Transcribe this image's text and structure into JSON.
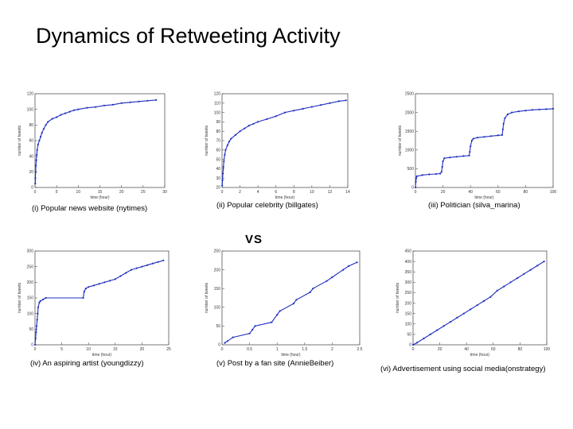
{
  "slide": {
    "title": "Dynamics of Retweeting Activity",
    "vs": "VS"
  },
  "chart_data": [
    {
      "type": "scatter",
      "caption": "(i) Popular news website (nytimes)",
      "xlabel": "time (hour)",
      "ylabel": "number of tweets",
      "xlim": [
        0,
        30
      ],
      "ylim": [
        0,
        120
      ],
      "xticks": [
        0,
        5,
        10,
        15,
        20,
        25,
        30
      ],
      "yticks": [
        0,
        20,
        40,
        60,
        80,
        100,
        120
      ],
      "color": "#1f2fbf",
      "points": [
        [
          0.05,
          5
        ],
        [
          0.1,
          12
        ],
        [
          0.15,
          20
        ],
        [
          0.2,
          28
        ],
        [
          0.3,
          35
        ],
        [
          0.4,
          42
        ],
        [
          0.5,
          48
        ],
        [
          0.7,
          55
        ],
        [
          1,
          60
        ],
        [
          1.3,
          65
        ],
        [
          1.6,
          70
        ],
        [
          2,
          75
        ],
        [
          2.5,
          80
        ],
        [
          3,
          84
        ],
        [
          4,
          88
        ],
        [
          5,
          90
        ],
        [
          6,
          93
        ],
        [
          7,
          95
        ],
        [
          8,
          97
        ],
        [
          9,
          99
        ],
        [
          10,
          100
        ],
        [
          12,
          102
        ],
        [
          14,
          103
        ],
        [
          16,
          105
        ],
        [
          18,
          106
        ],
        [
          20,
          108
        ],
        [
          22,
          109
        ],
        [
          24,
          110
        ],
        [
          26,
          111
        ],
        [
          28,
          112
        ]
      ]
    },
    {
      "type": "scatter",
      "caption": "(ii) Popular celebrity (billgates)",
      "xlabel": "time (hour)",
      "ylabel": "number of tweets",
      "xlim": [
        0,
        14
      ],
      "ylim": [
        20,
        120
      ],
      "xticks": [
        0,
        2,
        4,
        6,
        8,
        10,
        12,
        14
      ],
      "yticks": [
        20,
        30,
        40,
        50,
        60,
        70,
        80,
        90,
        100,
        110,
        120
      ],
      "color": "#1f2fbf",
      "points": [
        [
          0.02,
          22
        ],
        [
          0.05,
          28
        ],
        [
          0.1,
          35
        ],
        [
          0.15,
          42
        ],
        [
          0.2,
          48
        ],
        [
          0.3,
          55
        ],
        [
          0.4,
          60
        ],
        [
          0.6,
          65
        ],
        [
          0.8,
          69
        ],
        [
          1,
          72
        ],
        [
          1.5,
          76
        ],
        [
          2,
          80
        ],
        [
          2.5,
          83
        ],
        [
          3,
          86
        ],
        [
          3.5,
          88
        ],
        [
          4,
          90
        ],
        [
          5,
          93
        ],
        [
          6,
          96
        ],
        [
          7,
          100
        ],
        [
          8,
          102
        ],
        [
          9,
          104
        ],
        [
          10,
          106
        ],
        [
          11,
          108
        ],
        [
          12,
          110
        ],
        [
          13,
          112
        ],
        [
          13.8,
          113
        ]
      ]
    },
    {
      "type": "scatter",
      "caption": "(iii) Politician (silva_marina)",
      "xlabel": "time (hour)",
      "ylabel": "number of tweets",
      "xlim": [
        0,
        100
      ],
      "ylim": [
        0,
        2500
      ],
      "xticks": [
        0,
        20,
        40,
        60,
        80,
        100
      ],
      "yticks": [
        0,
        500,
        1000,
        1500,
        2000,
        2500
      ],
      "color": "#1f2fbf",
      "points": [
        [
          0,
          0
        ],
        [
          0.3,
          150
        ],
        [
          0.6,
          250
        ],
        [
          1,
          300
        ],
        [
          5,
          330
        ],
        [
          10,
          350
        ],
        [
          15,
          360
        ],
        [
          18,
          370
        ],
        [
          19,
          420
        ],
        [
          19.5,
          550
        ],
        [
          20,
          700
        ],
        [
          21,
          780
        ],
        [
          25,
          800
        ],
        [
          30,
          820
        ],
        [
          35,
          840
        ],
        [
          39,
          850
        ],
        [
          39.5,
          950
        ],
        [
          40,
          1100
        ],
        [
          41,
          1250
        ],
        [
          42,
          1300
        ],
        [
          45,
          1330
        ],
        [
          50,
          1350
        ],
        [
          55,
          1370
        ],
        [
          60,
          1390
        ],
        [
          63,
          1400
        ],
        [
          63.5,
          1550
        ],
        [
          64,
          1700
        ],
        [
          65,
          1850
        ],
        [
          67,
          1950
        ],
        [
          70,
          2000
        ],
        [
          75,
          2030
        ],
        [
          80,
          2050
        ],
        [
          85,
          2070
        ],
        [
          90,
          2080
        ],
        [
          95,
          2090
        ],
        [
          100,
          2100
        ]
      ]
    },
    {
      "type": "scatter",
      "caption": "(iv) An aspiring artist (youngdizzy)",
      "xlabel": "time (hour)",
      "ylabel": "number of tweets",
      "xlim": [
        0,
        25
      ],
      "ylim": [
        0,
        300
      ],
      "xticks": [
        0,
        5,
        10,
        15,
        20,
        25
      ],
      "yticks": [
        0,
        50,
        100,
        150,
        200,
        250,
        300
      ],
      "color": "#1f2fbf",
      "points": [
        [
          0,
          0
        ],
        [
          0.1,
          20
        ],
        [
          0.2,
          40
        ],
        [
          0.3,
          60
        ],
        [
          0.4,
          80
        ],
        [
          0.5,
          100
        ],
        [
          0.6,
          120
        ],
        [
          0.8,
          135
        ],
        [
          1,
          140
        ],
        [
          1.5,
          145
        ],
        [
          2,
          150
        ],
        [
          9,
          150
        ],
        [
          9.2,
          170
        ],
        [
          9.5,
          180
        ],
        [
          10,
          185
        ],
        [
          11,
          190
        ],
        [
          12,
          195
        ],
        [
          13,
          200
        ],
        [
          14,
          205
        ],
        [
          15,
          210
        ],
        [
          16,
          220
        ],
        [
          17,
          230
        ],
        [
          18,
          240
        ],
        [
          19,
          245
        ],
        [
          20,
          250
        ],
        [
          21,
          255
        ],
        [
          22,
          260
        ],
        [
          23,
          265
        ],
        [
          24,
          270
        ]
      ]
    },
    {
      "type": "scatter",
      "caption": "(v) Post by a fan site (AnnieBeiber)",
      "xlabel": "time (hour)",
      "ylabel": "number of tweets",
      "xlim": [
        0,
        2.5
      ],
      "ylim": [
        0,
        250
      ],
      "xticks": [
        0,
        0.5,
        1,
        1.5,
        2,
        2.5
      ],
      "yticks": [
        0,
        50,
        100,
        150,
        200,
        250
      ],
      "color": "#1f2fbf",
      "points": [
        [
          0.05,
          5
        ],
        [
          0.1,
          10
        ],
        [
          0.2,
          20
        ],
        [
          0.5,
          30
        ],
        [
          0.55,
          40
        ],
        [
          0.6,
          50
        ],
        [
          0.9,
          60
        ],
        [
          1,
          80
        ],
        [
          1.05,
          90
        ],
        [
          1.3,
          110
        ],
        [
          1.35,
          120
        ],
        [
          1.6,
          140
        ],
        [
          1.65,
          150
        ],
        [
          1.9,
          170
        ],
        [
          2,
          180
        ],
        [
          2.2,
          200
        ],
        [
          2.3,
          210
        ],
        [
          2.45,
          220
        ]
      ]
    },
    {
      "type": "scatter",
      "caption": "(vi) Advertisement using social media(onstrategy)",
      "xlabel": "time (hour)",
      "ylabel": "number of tweets",
      "xlim": [
        0,
        100
      ],
      "ylim": [
        0,
        450
      ],
      "xticks": [
        0,
        20,
        40,
        60,
        80,
        100
      ],
      "yticks": [
        0,
        50,
        100,
        150,
        200,
        250,
        300,
        350,
        400,
        450
      ],
      "color": "#1f2fbf",
      "points": [
        [
          0,
          0
        ],
        [
          3,
          10
        ],
        [
          8,
          30
        ],
        [
          13,
          50
        ],
        [
          18,
          70
        ],
        [
          23,
          90
        ],
        [
          28,
          110
        ],
        [
          33,
          130
        ],
        [
          38,
          150
        ],
        [
          43,
          170
        ],
        [
          48,
          190
        ],
        [
          53,
          210
        ],
        [
          58,
          230
        ],
        [
          63,
          260
        ],
        [
          68,
          280
        ],
        [
          73,
          300
        ],
        [
          78,
          320
        ],
        [
          83,
          340
        ],
        [
          88,
          360
        ],
        [
          93,
          380
        ],
        [
          98,
          400
        ]
      ]
    }
  ]
}
